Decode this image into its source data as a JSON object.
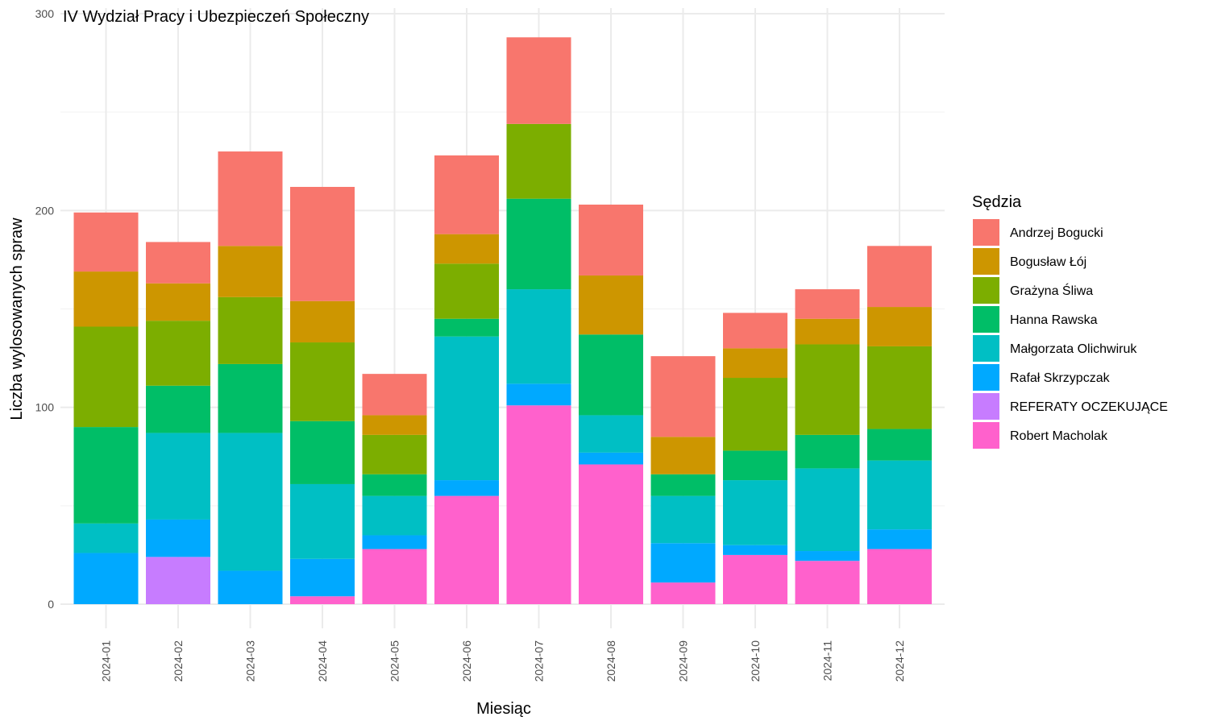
{
  "chart_data": {
    "type": "bar",
    "stacked": true,
    "title": "IV Wydział Pracy i Ubezpieczeń Społeczny",
    "xlabel": "Miesiąc",
    "ylabel": "Liczba wylosowanych spraw",
    "ylim": [
      0,
      300
    ],
    "yticks": [
      0,
      100,
      200,
      300
    ],
    "grid": true,
    "legend_title": "Sędzia",
    "legend_position": "right",
    "categories": [
      "2024-01",
      "2024-02",
      "2024-03",
      "2024-04",
      "2024-05",
      "2024-06",
      "2024-07",
      "2024-08",
      "2024-09",
      "2024-10",
      "2024-11",
      "2024-12"
    ],
    "series": [
      {
        "name": "Andrzej Bogucki",
        "color": "#F8766D",
        "values": [
          30,
          21,
          48,
          58,
          21,
          40,
          44,
          36,
          41,
          18,
          15,
          31
        ]
      },
      {
        "name": "Bogusław Łój",
        "color": "#CD9600",
        "values": [
          28,
          19,
          26,
          21,
          10,
          15,
          0,
          30,
          19,
          15,
          13,
          20
        ]
      },
      {
        "name": "Grażyna Śliwa",
        "color": "#7CAE00",
        "values": [
          51,
          33,
          34,
          40,
          20,
          28,
          38,
          0,
          0,
          37,
          46,
          42
        ]
      },
      {
        "name": "Hanna Rawska",
        "color": "#00BE67",
        "values": [
          49,
          24,
          35,
          32,
          11,
          9,
          46,
          41,
          11,
          15,
          17,
          16
        ]
      },
      {
        "name": "Małgorzata Olichwiruk",
        "color": "#00BFC4",
        "values": [
          15,
          44,
          70,
          38,
          20,
          73,
          48,
          19,
          24,
          33,
          42,
          35
        ]
      },
      {
        "name": "Rafał Skrzypczak",
        "color": "#00A9FF",
        "values": [
          26,
          19,
          17,
          19,
          7,
          8,
          11,
          6,
          20,
          5,
          5,
          10
        ]
      },
      {
        "name": "REFERATY OCZEKUJĄCE",
        "color": "#C77CFF",
        "values": [
          0,
          24,
          0,
          0,
          0,
          0,
          0,
          0,
          0,
          0,
          0,
          0
        ]
      },
      {
        "name": "Robert Macholak",
        "color": "#FF61CC",
        "values": [
          0,
          0,
          0,
          4,
          28,
          55,
          101,
          71,
          11,
          25,
          22,
          28
        ]
      }
    ]
  }
}
